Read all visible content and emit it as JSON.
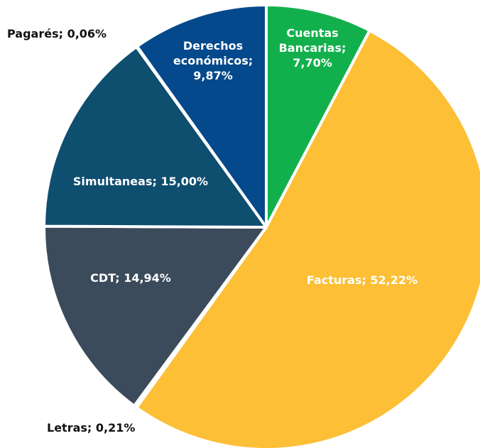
{
  "chart_data": {
    "type": "pie",
    "values": [
      7.7,
      52.22,
      0.21,
      14.94,
      15.0,
      0.06,
      9.87
    ],
    "value_labels": [
      "Cuentas Bancarias; 7,70%",
      "Facturas; 52,22%",
      "Letras; 0,21%",
      "CDT; 14,94%",
      "Simultaneas; 15,00%",
      "Pagarés; 0,06%",
      "Derechos económicos; 9,87%"
    ],
    "colors": [
      "#12b04c",
      "#fcbf36",
      "#f3d58a",
      "#3c4b5b",
      "#0e4e6f",
      "#1b5d86",
      "#04498b"
    ]
  }
}
